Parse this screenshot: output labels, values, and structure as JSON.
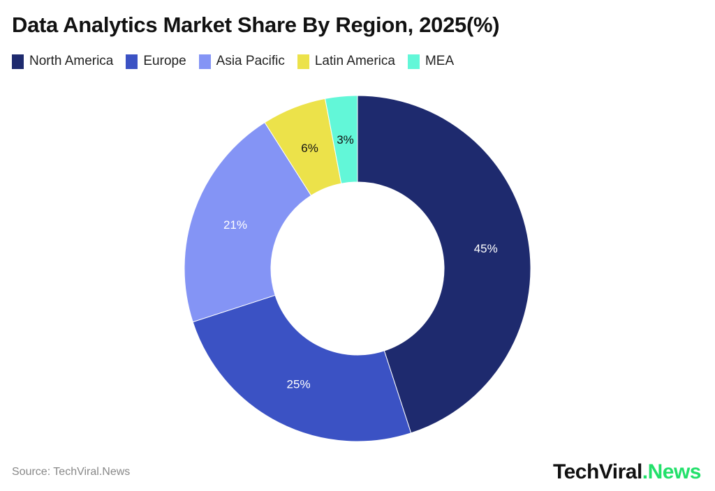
{
  "chart_data": {
    "type": "pie",
    "variant": "donut",
    "title": "Data Analytics Market Share By Region, 2025(%)",
    "categories": [
      "North America",
      "Europe",
      "Asia Pacific",
      "Latin America",
      "MEA"
    ],
    "values": [
      45,
      25,
      21,
      6,
      3
    ],
    "labels": [
      "45%",
      "25%",
      "21%",
      "6%",
      "3%"
    ],
    "colors": [
      "#1e2a6e",
      "#3b52c4",
      "#8494f5",
      "#ece24a",
      "#62f7d8"
    ],
    "label_colors": [
      "#ffffff",
      "#ffffff",
      "#ffffff",
      "#111111",
      "#111111"
    ],
    "legend_placement": "top-left"
  },
  "footer": {
    "source": "Source: TechViral.News"
  },
  "logo": {
    "text_main": "TechViral",
    "text_accent": ".News"
  }
}
